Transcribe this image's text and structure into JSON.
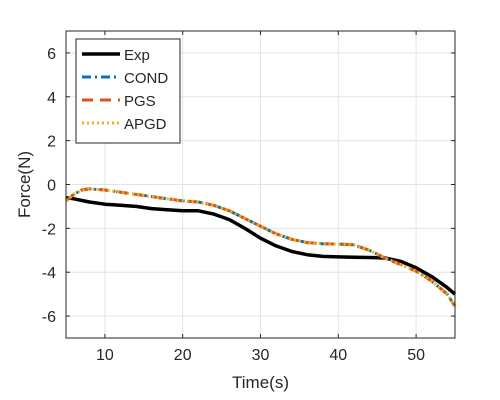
{
  "chart_data": {
    "type": "line",
    "xlabel": "Time(s)",
    "ylabel": "Force(N)",
    "xlim": [
      5,
      55
    ],
    "ylim": [
      -7,
      7
    ],
    "xticks": [
      10,
      20,
      30,
      40,
      50
    ],
    "yticks": [
      6,
      4,
      2,
      0,
      -2,
      -4,
      -6
    ],
    "grid": true,
    "legend_position": "top-left",
    "series": [
      {
        "name": "Exp",
        "color": "#000000",
        "style": "solid",
        "x": [
          5,
          6,
          8,
          10,
          12,
          14,
          16,
          18,
          20,
          22,
          24,
          26,
          28,
          30,
          32,
          34,
          36,
          38,
          40,
          42,
          44,
          46,
          48,
          50,
          52,
          54,
          55
        ],
        "y": [
          -0.6,
          -0.65,
          -0.8,
          -0.9,
          -0.95,
          -1.0,
          -1.1,
          -1.15,
          -1.2,
          -1.2,
          -1.35,
          -1.6,
          -2.0,
          -2.45,
          -2.8,
          -3.05,
          -3.2,
          -3.28,
          -3.3,
          -3.32,
          -3.33,
          -3.35,
          -3.5,
          -3.8,
          -4.2,
          -4.7,
          -5.0
        ]
      },
      {
        "name": "COND",
        "color": "#0072BD",
        "style": "dashdot",
        "x": [
          5,
          6,
          7,
          8,
          10,
          12,
          14,
          16,
          18,
          20,
          22,
          24,
          26,
          28,
          30,
          32,
          34,
          36,
          38,
          40,
          42,
          44,
          46,
          48,
          50,
          52,
          54,
          55
        ],
        "y": [
          -0.75,
          -0.45,
          -0.25,
          -0.2,
          -0.25,
          -0.35,
          -0.45,
          -0.55,
          -0.65,
          -0.75,
          -0.8,
          -0.95,
          -1.2,
          -1.55,
          -1.9,
          -2.25,
          -2.5,
          -2.65,
          -2.7,
          -2.72,
          -2.75,
          -3.0,
          -3.35,
          -3.65,
          -3.95,
          -4.4,
          -5.0,
          -5.55
        ]
      },
      {
        "name": "PGS",
        "color": "#D95319",
        "style": "dashed",
        "x": [
          5,
          6,
          7,
          8,
          10,
          12,
          14,
          16,
          18,
          20,
          22,
          24,
          26,
          28,
          30,
          32,
          34,
          36,
          38,
          40,
          42,
          44,
          46,
          48,
          50,
          52,
          54,
          55
        ],
        "y": [
          -0.75,
          -0.45,
          -0.25,
          -0.2,
          -0.25,
          -0.35,
          -0.45,
          -0.55,
          -0.65,
          -0.75,
          -0.8,
          -0.95,
          -1.2,
          -1.55,
          -1.9,
          -2.25,
          -2.5,
          -2.65,
          -2.7,
          -2.72,
          -2.75,
          -3.0,
          -3.35,
          -3.65,
          -3.95,
          -4.4,
          -5.0,
          -5.55
        ]
      },
      {
        "name": "APGD",
        "color": "#EDB120",
        "style": "dotted",
        "x": [
          5,
          6,
          7,
          8,
          10,
          12,
          14,
          16,
          18,
          20,
          22,
          24,
          26,
          28,
          30,
          32,
          34,
          36,
          38,
          40,
          42,
          44,
          46,
          48,
          50,
          52,
          54,
          55
        ],
        "y": [
          -0.75,
          -0.45,
          -0.25,
          -0.2,
          -0.25,
          -0.35,
          -0.45,
          -0.55,
          -0.65,
          -0.75,
          -0.8,
          -0.95,
          -1.2,
          -1.55,
          -1.9,
          -2.25,
          -2.5,
          -2.65,
          -2.7,
          -2.72,
          -2.75,
          -3.0,
          -3.35,
          -3.65,
          -3.95,
          -4.4,
          -5.0,
          -5.55
        ]
      }
    ]
  }
}
